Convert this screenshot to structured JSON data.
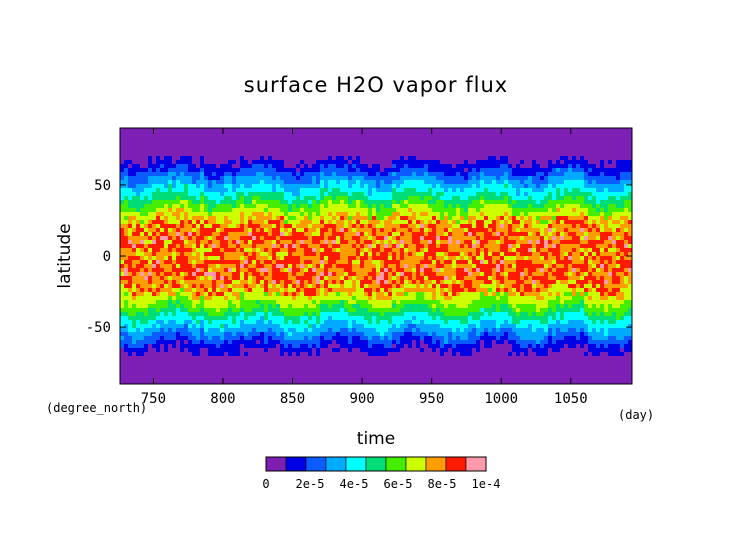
{
  "chart_data": {
    "type": "heatmap",
    "title": "surface H2O vapor flux",
    "xlabel": "time",
    "ylabel": "latitude",
    "x_unit": "(day)",
    "y_unit": "(degree_north)",
    "xlim": [
      726,
      1094
    ],
    "ylim": [
      -90,
      90
    ],
    "x_ticks": [
      750,
      800,
      850,
      900,
      950,
      1000,
      1050
    ],
    "y_ticks": [
      -50,
      0,
      50
    ],
    "colorbar": {
      "levels": [
        0,
        1e-05,
        2e-05,
        3e-05,
        4e-05,
        5e-05,
        6e-05,
        7e-05,
        8e-05,
        9e-05,
        0.0001
      ],
      "tick_labels": [
        "0",
        "2e-5",
        "4e-5",
        "6e-5",
        "8e-5",
        "1e-4"
      ],
      "colors": [
        "#7d1fb4",
        "#0000e6",
        "#0b5cff",
        "#00aaff",
        "#00ffff",
        "#00dd77",
        "#44ee00",
        "#ccff00",
        "#ff9d00",
        "#ff1a00",
        "#ff9aaa"
      ]
    },
    "latitude_profile": {
      "latitude": [
        -90,
        -80,
        -70,
        -63,
        -57,
        -50,
        -42,
        -35,
        -28,
        -20,
        -12,
        -5,
        0,
        5,
        12,
        20,
        28,
        35,
        42,
        50,
        57,
        63,
        70,
        80,
        90
      ],
      "flux": [
        0,
        0,
        6e-06,
        1.4e-05,
        2.6e-05,
        3.8e-05,
        5.2e-05,
        6.6e-05,
        7.8e-05,
        8.6e-05,
        9e-05,
        8.8e-05,
        8.6e-05,
        8.8e-05,
        9e-05,
        8.6e-05,
        7.8e-05,
        6.6e-05,
        5.2e-05,
        3.8e-05,
        2.6e-05,
        1.4e-05,
        6e-06,
        0,
        0
      ]
    }
  }
}
